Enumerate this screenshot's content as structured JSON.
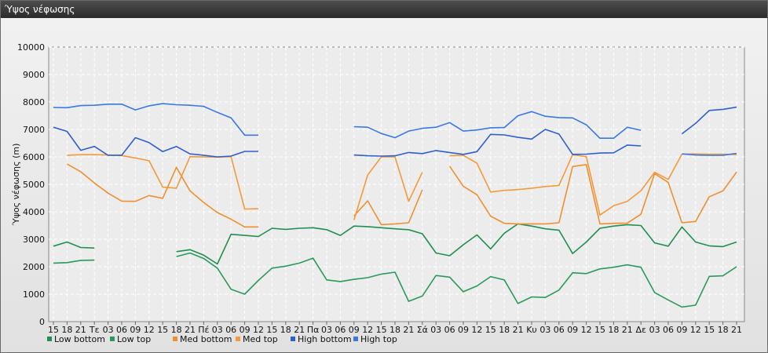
{
  "window": {
    "title": "Ύψος νέφωσης"
  },
  "chart_data": {
    "type": "line",
    "title": "",
    "ylabel": "Ύψος νέφωσης (m)",
    "xlabel": "",
    "ylim": [
      0,
      10000
    ],
    "yticks": [
      0,
      1000,
      2000,
      3000,
      4000,
      5000,
      6000,
      7000,
      8000,
      9000,
      10000
    ],
    "grid": true,
    "legend_position": "bottom-left",
    "categories": [
      "15",
      "18",
      "21",
      "Τε",
      "03",
      "06",
      "09",
      "12",
      "15",
      "18",
      "21",
      "Πέ",
      "03",
      "06",
      "09",
      "12",
      "15",
      "18",
      "21",
      "Πα",
      "03",
      "06",
      "09",
      "12",
      "15",
      "18",
      "21",
      "Σά",
      "03",
      "06",
      "09",
      "12",
      "15",
      "18",
      "21",
      "Κυ",
      "03",
      "06",
      "09",
      "12",
      "15",
      "18",
      "21",
      "Δε",
      "03",
      "06",
      "09",
      "12",
      "15",
      "18",
      "21"
    ],
    "series": [
      {
        "name": "Low bottom",
        "color": "#1f8f4f",
        "values": [
          2750,
          2900,
          2700,
          2680,
          null,
          null,
          null,
          null,
          null,
          2550,
          2620,
          2420,
          2100,
          3180,
          3140,
          3100,
          3400,
          3360,
          3400,
          3420,
          3350,
          3140,
          3480,
          3460,
          3420,
          3380,
          3350,
          3200,
          2500,
          2400,
          2800,
          3160,
          2650,
          3220,
          3560,
          3480,
          3380,
          3330,
          2480,
          2900,
          3400,
          3480,
          3530,
          3500,
          2870,
          2750,
          3450,
          2900,
          2760,
          2730,
          2900
        ]
      },
      {
        "name": "Low top",
        "color": "#2a9a5a",
        "values": [
          2130,
          2150,
          2230,
          2240,
          null,
          null,
          null,
          null,
          null,
          2370,
          2500,
          2300,
          1950,
          1180,
          1000,
          1500,
          1950,
          2020,
          2130,
          2310,
          1520,
          1460,
          1540,
          1600,
          1730,
          1800,
          740,
          930,
          1680,
          1620,
          1090,
          1300,
          1640,
          1520,
          660,
          900,
          880,
          1150,
          1780,
          1750,
          1920,
          1980,
          2070,
          1980,
          1060,
          790,
          530,
          600,
          1650,
          1670,
          2000
        ]
      },
      {
        "name": "Med bottom",
        "color": "#ef8f2f",
        "values": [
          null,
          5740,
          5460,
          5050,
          4680,
          4390,
          4380,
          4590,
          4490,
          5620,
          4760,
          4340,
          3970,
          3730,
          3450,
          3450,
          null,
          null,
          null,
          null,
          null,
          null,
          3850,
          4400,
          3530,
          3560,
          3600,
          4800,
          null,
          5660,
          4930,
          4620,
          3840,
          3580,
          3560,
          3560,
          3560,
          3600,
          5650,
          5720,
          3560,
          3580,
          3590,
          3910,
          5390,
          5070,
          3600,
          3650,
          4550,
          4760,
          5450
        ]
      },
      {
        "name": "Med top",
        "color": "#f39a3a",
        "values": [
          null,
          6060,
          6080,
          6080,
          6070,
          6050,
          5960,
          5860,
          4900,
          4860,
          6010,
          6000,
          5990,
          6010,
          4100,
          4110,
          null,
          null,
          null,
          null,
          null,
          null,
          3700,
          5340,
          6000,
          6000,
          4380,
          5440,
          null,
          6040,
          6060,
          5770,
          4720,
          4780,
          4810,
          4860,
          4920,
          4960,
          6080,
          6010,
          3880,
          4220,
          4380,
          4770,
          5440,
          5180,
          6100,
          6110,
          6100,
          6100,
          6080
        ]
      },
      {
        "name": "High bottom",
        "color": "#2f5fcf",
        "values": [
          7080,
          6930,
          6240,
          6380,
          6060,
          6060,
          6700,
          6520,
          6190,
          6380,
          6110,
          6060,
          6000,
          6030,
          6200,
          6200,
          null,
          null,
          null,
          null,
          null,
          null,
          6070,
          6040,
          6030,
          6040,
          6160,
          6120,
          6230,
          6160,
          6090,
          6190,
          6820,
          6800,
          6710,
          6650,
          7000,
          6830,
          6090,
          6100,
          6140,
          6150,
          6430,
          6400,
          null,
          null,
          6840,
          7220,
          7690,
          7730,
          7810
        ]
      },
      {
        "name": "High top",
        "color": "#3a78e6",
        "values": [
          7800,
          7790,
          7870,
          7880,
          7920,
          7920,
          7710,
          7860,
          7940,
          7900,
          7880,
          7840,
          7620,
          7420,
          6790,
          6790,
          null,
          null,
          null,
          null,
          null,
          null,
          7100,
          7080,
          6850,
          6700,
          6940,
          7040,
          7080,
          7250,
          6940,
          6980,
          7060,
          7070,
          7500,
          7650,
          7480,
          7430,
          7420,
          7170,
          6680,
          6680,
          7080,
          6970,
          null,
          null,
          6110,
          6070,
          6060,
          6060,
          6130
        ]
      }
    ]
  }
}
